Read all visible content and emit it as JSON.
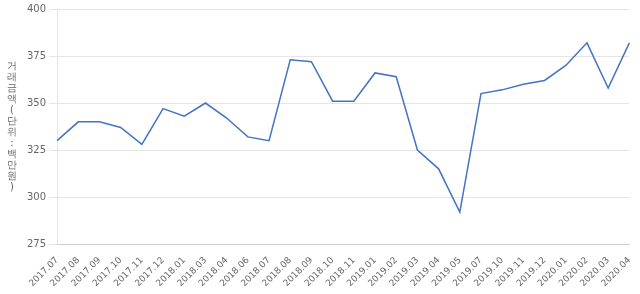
{
  "chart_data": {
    "type": "line",
    "ylabel": "거래금액(단위:백만원)",
    "categories": [
      "2017.07",
      "2017.08",
      "2017.09",
      "2017.10",
      "2017.11",
      "2017.12",
      "2018.01",
      "2018.03",
      "2018.04",
      "2018.06",
      "2018.07",
      "2018.08",
      "2018.09",
      "2018.10",
      "2018.11",
      "2019.01",
      "2019.02",
      "2019.03",
      "2019.04",
      "2019.05",
      "2019.07",
      "2019.10",
      "2019.11",
      "2019.12",
      "2020.01",
      "2020.02",
      "2020.03",
      "2020.04"
    ],
    "values": [
      330,
      340,
      340,
      337,
      328,
      347,
      343,
      350,
      342,
      332,
      330,
      373,
      372,
      351,
      351,
      366,
      364,
      325,
      315,
      292,
      355,
      357,
      360,
      362,
      370,
      382,
      358,
      382
    ],
    "color": "#4472c4",
    "ylim": [
      275,
      400
    ],
    "yticks": [
      275,
      300,
      325,
      350,
      375,
      400
    ],
    "grid": true
  }
}
